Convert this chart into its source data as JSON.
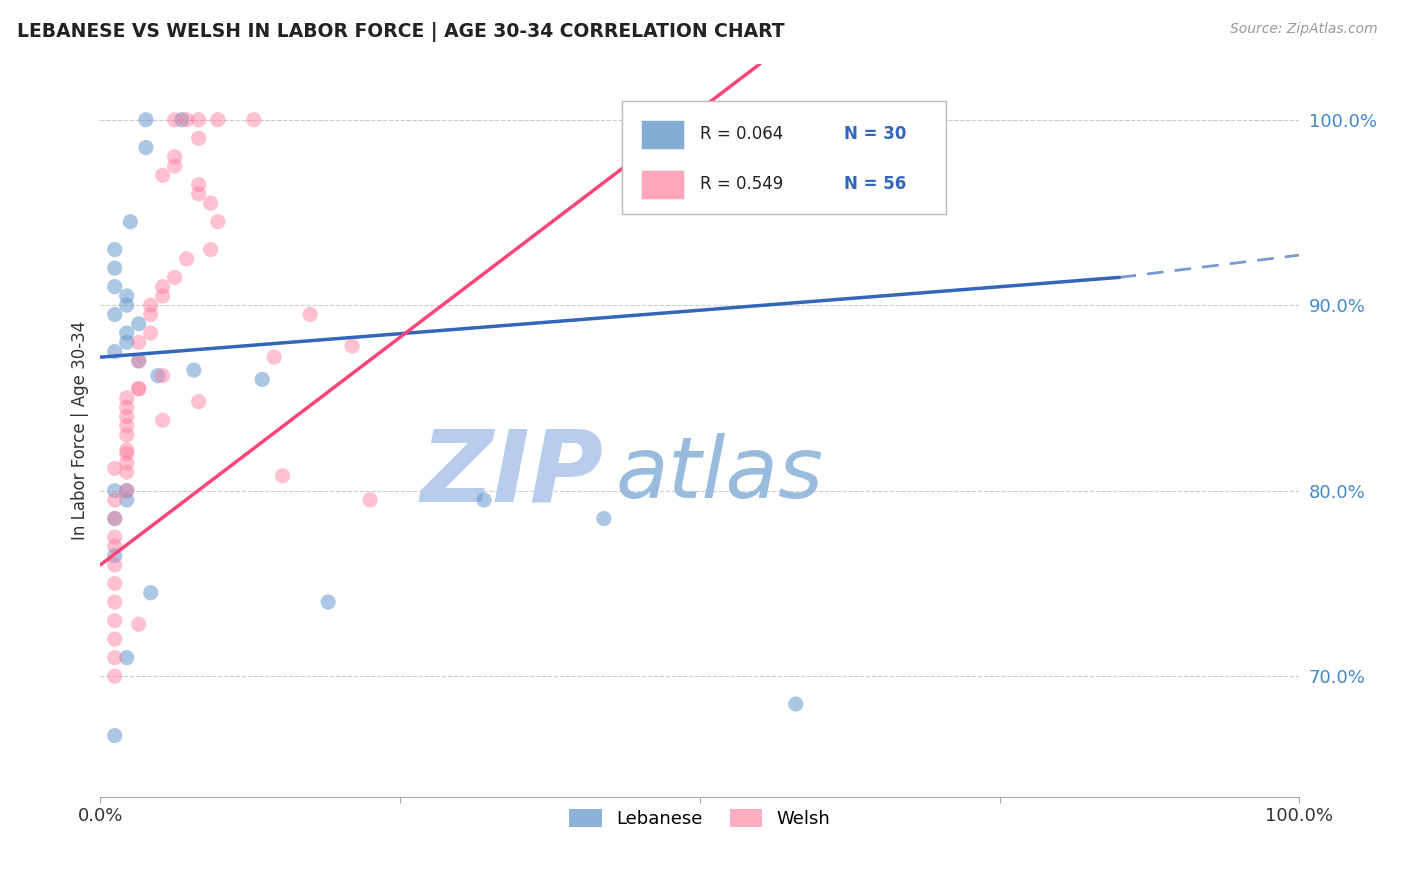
{
  "title": "LEBANESE VS WELSH IN LABOR FORCE | AGE 30-34 CORRELATION CHART",
  "source_text": "Source: ZipAtlas.com",
  "ylabel": "In Labor Force | Age 30-34",
  "xlim": [
    0.0,
    1.0
  ],
  "ylim": [
    0.635,
    1.03
  ],
  "yticks": [
    0.7,
    0.8,
    0.9,
    1.0
  ],
  "ytick_labels": [
    "70.0%",
    "80.0%",
    "90.0%",
    "100.0%"
  ],
  "legend_R_blue": "R = 0.064",
  "legend_N_blue": "N = 30",
  "legend_R_pink": "R = 0.549",
  "legend_N_pink": "N = 56",
  "blue_color": "#6699CC",
  "pink_color": "#FF7799",
  "blue_line_color": "#3366BB",
  "pink_line_color": "#FF4477",
  "watermark_zip": "ZIP",
  "watermark_atlas": "atlas",
  "watermark_color_zip": "#B8CCEE",
  "watermark_color_atlas": "#99BBDD",
  "blue_line_x0": 0.0,
  "blue_line_y0": 0.872,
  "blue_line_x1": 0.85,
  "blue_line_y1": 0.915,
  "blue_line_dash_x0": 0.85,
  "blue_line_dash_y0": 0.915,
  "blue_line_dash_x1": 1.0,
  "blue_line_dash_y1": 0.927,
  "pink_line_x0": 0.0,
  "pink_line_y0": 0.76,
  "pink_line_x1": 0.55,
  "pink_line_y1": 1.03,
  "blue_scatter_x": [
    0.038,
    0.068,
    0.038,
    0.025,
    0.012,
    0.012,
    0.012,
    0.022,
    0.022,
    0.012,
    0.032,
    0.022,
    0.022,
    0.012,
    0.032,
    0.078,
    0.135,
    0.022,
    0.32,
    0.42,
    0.022,
    0.012,
    0.012,
    0.012,
    0.042,
    0.19,
    0.022,
    0.58,
    0.012,
    0.048
  ],
  "blue_scatter_y": [
    1.0,
    1.0,
    0.985,
    0.945,
    0.93,
    0.92,
    0.91,
    0.905,
    0.9,
    0.895,
    0.89,
    0.885,
    0.88,
    0.875,
    0.87,
    0.865,
    0.86,
    0.8,
    0.795,
    0.785,
    0.795,
    0.8,
    0.785,
    0.765,
    0.745,
    0.74,
    0.71,
    0.685,
    0.668,
    0.862
  ],
  "pink_scatter_x": [
    0.062,
    0.098,
    0.082,
    0.072,
    0.128,
    0.082,
    0.062,
    0.062,
    0.052,
    0.082,
    0.082,
    0.092,
    0.098,
    0.092,
    0.072,
    0.062,
    0.052,
    0.052,
    0.042,
    0.042,
    0.042,
    0.032,
    0.032,
    0.032,
    0.022,
    0.022,
    0.022,
    0.022,
    0.022,
    0.022,
    0.022,
    0.022,
    0.022,
    0.012,
    0.012,
    0.012,
    0.012,
    0.012,
    0.012,
    0.012,
    0.012,
    0.012,
    0.012,
    0.012,
    0.175,
    0.21,
    0.145,
    0.052,
    0.032,
    0.082,
    0.052,
    0.022,
    0.012,
    0.152,
    0.225,
    0.032
  ],
  "pink_scatter_y": [
    1.0,
    1.0,
    1.0,
    1.0,
    1.0,
    0.99,
    0.98,
    0.975,
    0.97,
    0.965,
    0.96,
    0.955,
    0.945,
    0.93,
    0.925,
    0.915,
    0.91,
    0.905,
    0.9,
    0.895,
    0.885,
    0.88,
    0.87,
    0.855,
    0.85,
    0.845,
    0.84,
    0.835,
    0.83,
    0.82,
    0.815,
    0.81,
    0.8,
    0.795,
    0.785,
    0.775,
    0.77,
    0.76,
    0.75,
    0.74,
    0.73,
    0.72,
    0.71,
    0.7,
    0.895,
    0.878,
    0.872,
    0.862,
    0.855,
    0.848,
    0.838,
    0.822,
    0.812,
    0.808,
    0.795,
    0.728
  ]
}
